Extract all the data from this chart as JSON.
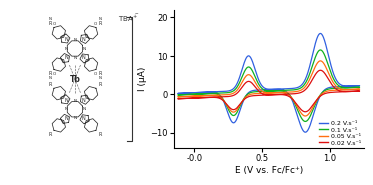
{
  "xlabel": "E (V vs. Fc/Fc⁺)",
  "ylabel": "I (μA)",
  "xlim": [
    -0.15,
    1.25
  ],
  "ylim": [
    -14,
    22
  ],
  "yticks": [
    -10,
    0,
    10,
    20
  ],
  "xticks": [
    0.0,
    0.5,
    1.0
  ],
  "xtick_labels": [
    "-0.0",
    "0.5",
    "1.0"
  ],
  "scan_rates": [
    "0.2 V.s⁻¹",
    "0.1 V.s⁻¹",
    "0.05 V.s⁻¹",
    "0.02 V.s⁻¹"
  ],
  "colors": [
    "#3060e0",
    "#10b020",
    "#ff7010",
    "#dd1010"
  ],
  "tba_label": "TBA⁺",
  "mol_image_placeholder": true
}
